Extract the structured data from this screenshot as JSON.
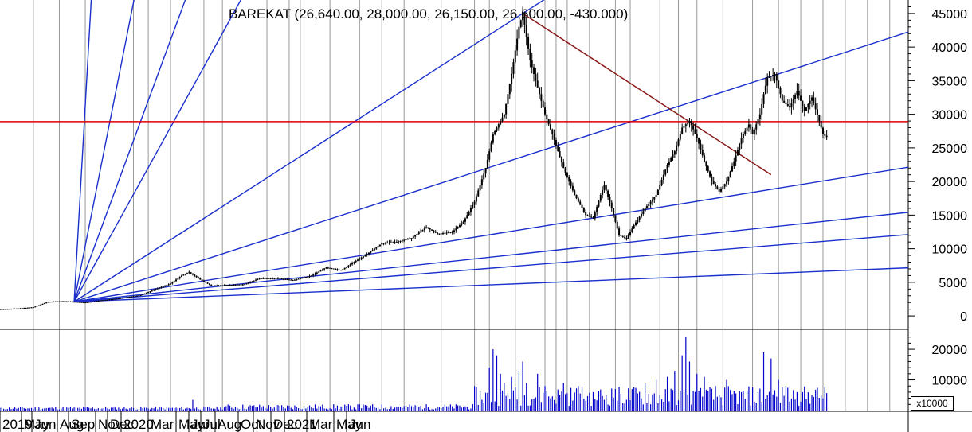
{
  "chart_data": {
    "type": "candlestick",
    "symbol": "BAREKAT",
    "title": "BAREKAT (26,640.00, 28,000.00, 26,150.00, 26,600.00, -430.000)",
    "quote": {
      "open": 26640,
      "high": 28000,
      "low": 26150,
      "close": 26600,
      "change": -430
    },
    "x_labels": [
      "2019",
      "May",
      "Jun",
      "Aug",
      "Sep",
      "Nov",
      "Dec",
      "2020",
      "Mar",
      "May",
      "Jun",
      "Jul",
      "Aug",
      "Oct",
      "Nov",
      "Dec",
      "2021",
      "Mar",
      "May",
      "Jun"
    ],
    "price_axis": {
      "ticks": [
        0,
        5000,
        10000,
        15000,
        20000,
        25000,
        30000,
        35000,
        40000,
        45000
      ],
      "tick_labels": [
        "0",
        "5000",
        "10000",
        "15000",
        "20000",
        "25000",
        "30000",
        "35000",
        "40000",
        "45000"
      ],
      "range": [
        -2000,
        47000
      ]
    },
    "volume_axis": {
      "ticks": [
        10000,
        20000
      ],
      "tick_labels": [
        "10000",
        "20000"
      ],
      "unit_label": "x10000",
      "range": [
        0,
        26000
      ]
    },
    "price_series": [
      {
        "t": 0,
        "p": 1000
      },
      {
        "t": 5,
        "p": 1100
      },
      {
        "t": 9,
        "p": 1300
      },
      {
        "t": 13,
        "p": 2100
      },
      {
        "t": 17,
        "p": 2200
      },
      {
        "t": 20,
        "p": 2100
      },
      {
        "t": 23,
        "p": 2000
      },
      {
        "t": 27,
        "p": 2300
      },
      {
        "t": 32,
        "p": 2600
      },
      {
        "t": 38,
        "p": 3100
      },
      {
        "t": 42,
        "p": 4000
      },
      {
        "t": 46,
        "p": 4800
      },
      {
        "t": 49,
        "p": 6000
      },
      {
        "t": 51,
        "p": 6500
      },
      {
        "t": 54,
        "p": 5400
      },
      {
        "t": 57,
        "p": 4500
      },
      {
        "t": 62,
        "p": 4600
      },
      {
        "t": 66,
        "p": 4700
      },
      {
        "t": 70,
        "p": 5600
      },
      {
        "t": 75,
        "p": 5600
      },
      {
        "t": 79,
        "p": 5300
      },
      {
        "t": 84,
        "p": 6000
      },
      {
        "t": 88,
        "p": 7200
      },
      {
        "t": 92,
        "p": 6800
      },
      {
        "t": 96,
        "p": 8200
      },
      {
        "t": 99,
        "p": 9200
      },
      {
        "t": 103,
        "p": 10800
      },
      {
        "t": 107,
        "p": 11000
      },
      {
        "t": 111,
        "p": 11600
      },
      {
        "t": 115,
        "p": 13200
      },
      {
        "t": 118,
        "p": 12200
      },
      {
        "t": 122,
        "p": 12500
      },
      {
        "t": 125,
        "p": 14000
      },
      {
        "t": 128,
        "p": 17000
      },
      {
        "t": 131,
        "p": 22000
      },
      {
        "t": 133,
        "p": 27000
      },
      {
        "t": 136,
        "p": 30000
      },
      {
        "t": 138,
        "p": 36000
      },
      {
        "t": 140,
        "p": 43000
      },
      {
        "t": 141,
        "p": 45000
      },
      {
        "t": 143,
        "p": 38000
      },
      {
        "t": 145,
        "p": 34000
      },
      {
        "t": 147,
        "p": 30000
      },
      {
        "t": 149,
        "p": 27000
      },
      {
        "t": 152,
        "p": 22000
      },
      {
        "t": 155,
        "p": 18000
      },
      {
        "t": 158,
        "p": 15000
      },
      {
        "t": 160,
        "p": 14500
      },
      {
        "t": 162,
        "p": 18000
      },
      {
        "t": 163,
        "p": 19500
      },
      {
        "t": 165,
        "p": 16000
      },
      {
        "t": 167,
        "p": 12000
      },
      {
        "t": 169,
        "p": 11500
      },
      {
        "t": 171,
        "p": 13500
      },
      {
        "t": 174,
        "p": 16000
      },
      {
        "t": 177,
        "p": 18000
      },
      {
        "t": 180,
        "p": 22500
      },
      {
        "t": 182,
        "p": 24500
      },
      {
        "t": 184,
        "p": 28000
      },
      {
        "t": 186,
        "p": 29000
      },
      {
        "t": 188,
        "p": 26500
      },
      {
        "t": 190,
        "p": 23000
      },
      {
        "t": 192,
        "p": 20000
      },
      {
        "t": 194,
        "p": 18500
      },
      {
        "t": 196,
        "p": 20000
      },
      {
        "t": 198,
        "p": 23000
      },
      {
        "t": 200,
        "p": 26500
      },
      {
        "t": 202,
        "p": 28500
      },
      {
        "t": 203,
        "p": 27000
      },
      {
        "t": 205,
        "p": 30000
      },
      {
        "t": 206,
        "p": 33000
      },
      {
        "t": 207,
        "p": 35500
      },
      {
        "t": 209,
        "p": 36000
      },
      {
        "t": 211,
        "p": 32000
      },
      {
        "t": 213,
        "p": 31000
      },
      {
        "t": 215,
        "p": 33500
      },
      {
        "t": 217,
        "p": 30500
      },
      {
        "t": 219,
        "p": 32500
      },
      {
        "t": 221,
        "p": 29000
      },
      {
        "t": 222,
        "p": 27000
      },
      {
        "t": 223,
        "p": 26600
      }
    ],
    "horizontal_lines": [
      {
        "price": 28900,
        "color": "#dd0000"
      }
    ],
    "trend_lines": [
      {
        "color": "#8b1a1a",
        "from": {
          "t": 141,
          "p": 45000
        },
        "to": {
          "t": 208,
          "p": 21000
        }
      }
    ],
    "gann_fan": {
      "color": "#1a2fcc",
      "origin": {
        "t": 20,
        "p": 2100
      },
      "directions": [
        {
          "t": 28,
          "p": 80000
        },
        {
          "t": 48,
          "p": 80000
        },
        {
          "t": 72,
          "p": 80000
        },
        {
          "t": 98,
          "p": 80000
        },
        {
          "t": 141,
          "p": 45000
        },
        {
          "t": 238,
          "p": 41000
        },
        {
          "t": 238,
          "p": 21500
        },
        {
          "t": 238,
          "p": 15000
        },
        {
          "t": 238,
          "p": 11800
        },
        {
          "t": 238,
          "p": 7000
        }
      ]
    },
    "volume_spikes": [
      {
        "t": 52,
        "v": 3500
      },
      {
        "t": 97,
        "v": 2000
      },
      {
        "t": 132,
        "v": 14000
      },
      {
        "t": 133,
        "v": 20000
      },
      {
        "t": 134,
        "v": 18000
      },
      {
        "t": 135,
        "v": 12000
      },
      {
        "t": 136,
        "v": 9000
      },
      {
        "t": 138,
        "v": 11000
      },
      {
        "t": 140,
        "v": 13000
      },
      {
        "t": 141,
        "v": 16000
      },
      {
        "t": 142,
        "v": 9000
      },
      {
        "t": 145,
        "v": 12000
      },
      {
        "t": 147,
        "v": 8000
      },
      {
        "t": 152,
        "v": 9000
      },
      {
        "t": 156,
        "v": 8000
      },
      {
        "t": 160,
        "v": 6000
      },
      {
        "t": 166,
        "v": 7000
      },
      {
        "t": 174,
        "v": 9000
      },
      {
        "t": 177,
        "v": 10000
      },
      {
        "t": 180,
        "v": 11000
      },
      {
        "t": 182,
        "v": 13000
      },
      {
        "t": 184,
        "v": 18000
      },
      {
        "t": 185,
        "v": 24000
      },
      {
        "t": 186,
        "v": 16000
      },
      {
        "t": 188,
        "v": 12000
      },
      {
        "t": 190,
        "v": 11000
      },
      {
        "t": 193,
        "v": 8000
      },
      {
        "t": 196,
        "v": 10000
      },
      {
        "t": 200,
        "v": 6000
      },
      {
        "t": 206,
        "v": 19000
      },
      {
        "t": 208,
        "v": 17000
      },
      {
        "t": 210,
        "v": 10000
      },
      {
        "t": 212,
        "v": 8000
      },
      {
        "t": 215,
        "v": 6000
      },
      {
        "t": 219,
        "v": 5000
      },
      {
        "t": 222,
        "v": 4000
      }
    ],
    "grid": true
  },
  "colors": {
    "price": "#000000",
    "volume": "#0000cc",
    "fan": "#1a2fcc",
    "hline": "#dd0000",
    "trend": "#8b1a1a",
    "grid": "#9a9a9a"
  }
}
